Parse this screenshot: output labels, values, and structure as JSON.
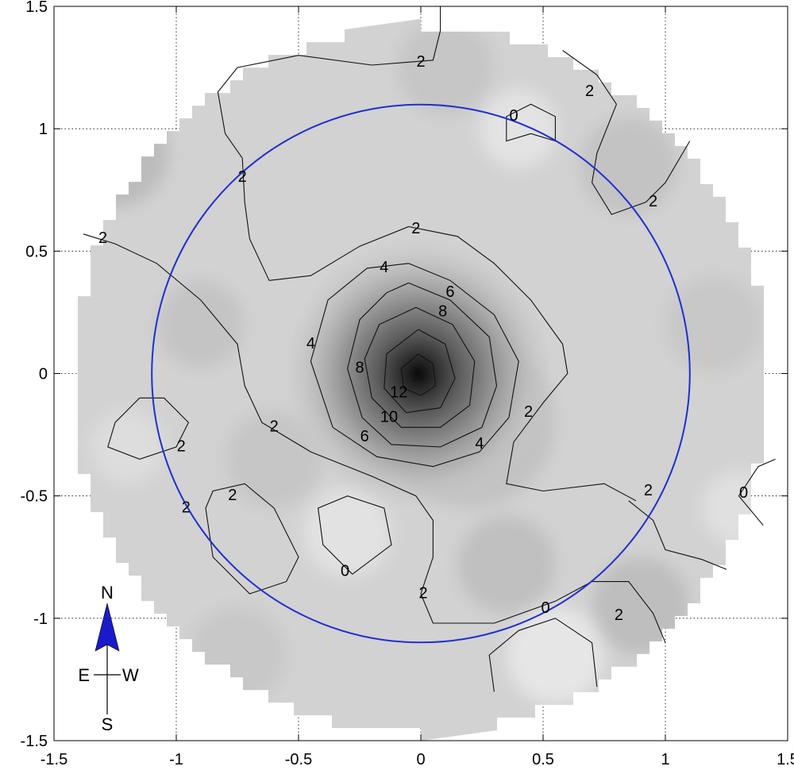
{
  "chart_data": {
    "type": "heatmap",
    "title": "",
    "xlabel": "",
    "ylabel": "",
    "xlim": [
      -1.5,
      1.5
    ],
    "ylim": [
      -1.5,
      1.5
    ],
    "grid": true,
    "x_ticks": [
      "-1.5",
      "-1",
      "-0.5",
      "0",
      "0.5",
      "1",
      "1.5"
    ],
    "y_ticks": [
      "1.5",
      "1",
      "0.5",
      "0",
      "-0.5",
      "-1",
      "-1.5"
    ],
    "colormap": "gray",
    "field_domain_radius": 1.45,
    "peak": {
      "x": -0.01,
      "y": 0.0,
      "value": 13
    },
    "contour_levels": [
      0,
      2,
      4,
      6,
      8,
      10,
      12
    ],
    "contour_labels": [
      {
        "text": "2",
        "x": 0.0,
        "y": 1.27
      },
      {
        "text": "2",
        "x": 0.69,
        "y": 1.15
      },
      {
        "text": "0",
        "x": 0.38,
        "y": 1.05
      },
      {
        "text": "2",
        "x": -0.73,
        "y": 0.8
      },
      {
        "text": "2",
        "x": 0.95,
        "y": 0.7
      },
      {
        "text": "2",
        "x": -1.3,
        "y": 0.55
      },
      {
        "text": "2",
        "x": -0.02,
        "y": 0.59
      },
      {
        "text": "4",
        "x": -0.15,
        "y": 0.43
      },
      {
        "text": "6",
        "x": 0.12,
        "y": 0.33
      },
      {
        "text": "8",
        "x": 0.09,
        "y": 0.25
      },
      {
        "text": "4",
        "x": -0.45,
        "y": 0.12
      },
      {
        "text": "8",
        "x": -0.25,
        "y": 0.02
      },
      {
        "text": "12",
        "x": -0.09,
        "y": -0.08
      },
      {
        "text": "10",
        "x": -0.13,
        "y": -0.18
      },
      {
        "text": "2",
        "x": 0.44,
        "y": -0.16
      },
      {
        "text": "2",
        "x": -0.6,
        "y": -0.22
      },
      {
        "text": "6",
        "x": -0.23,
        "y": -0.26
      },
      {
        "text": "4",
        "x": 0.24,
        "y": -0.29
      },
      {
        "text": "2",
        "x": -0.98,
        "y": -0.3
      },
      {
        "text": "2",
        "x": 0.93,
        "y": -0.48
      },
      {
        "text": "0",
        "x": 1.32,
        "y": -0.49
      },
      {
        "text": "2",
        "x": -0.77,
        "y": -0.5
      },
      {
        "text": "2",
        "x": -0.96,
        "y": -0.55
      },
      {
        "text": "0",
        "x": -0.31,
        "y": -0.81
      },
      {
        "text": "2",
        "x": 0.01,
        "y": -0.9
      },
      {
        "text": "0",
        "x": 0.51,
        "y": -0.96
      },
      {
        "text": "2",
        "x": 0.81,
        "y": -0.99
      }
    ],
    "circle": {
      "center": [
        0.0,
        0.0
      ],
      "radius": 1.1,
      "color": "#1f2fd0"
    },
    "compass": {
      "north": "N",
      "south": "S",
      "east": "E",
      "west": "W",
      "arrow_color": "#1a1acc"
    }
  }
}
